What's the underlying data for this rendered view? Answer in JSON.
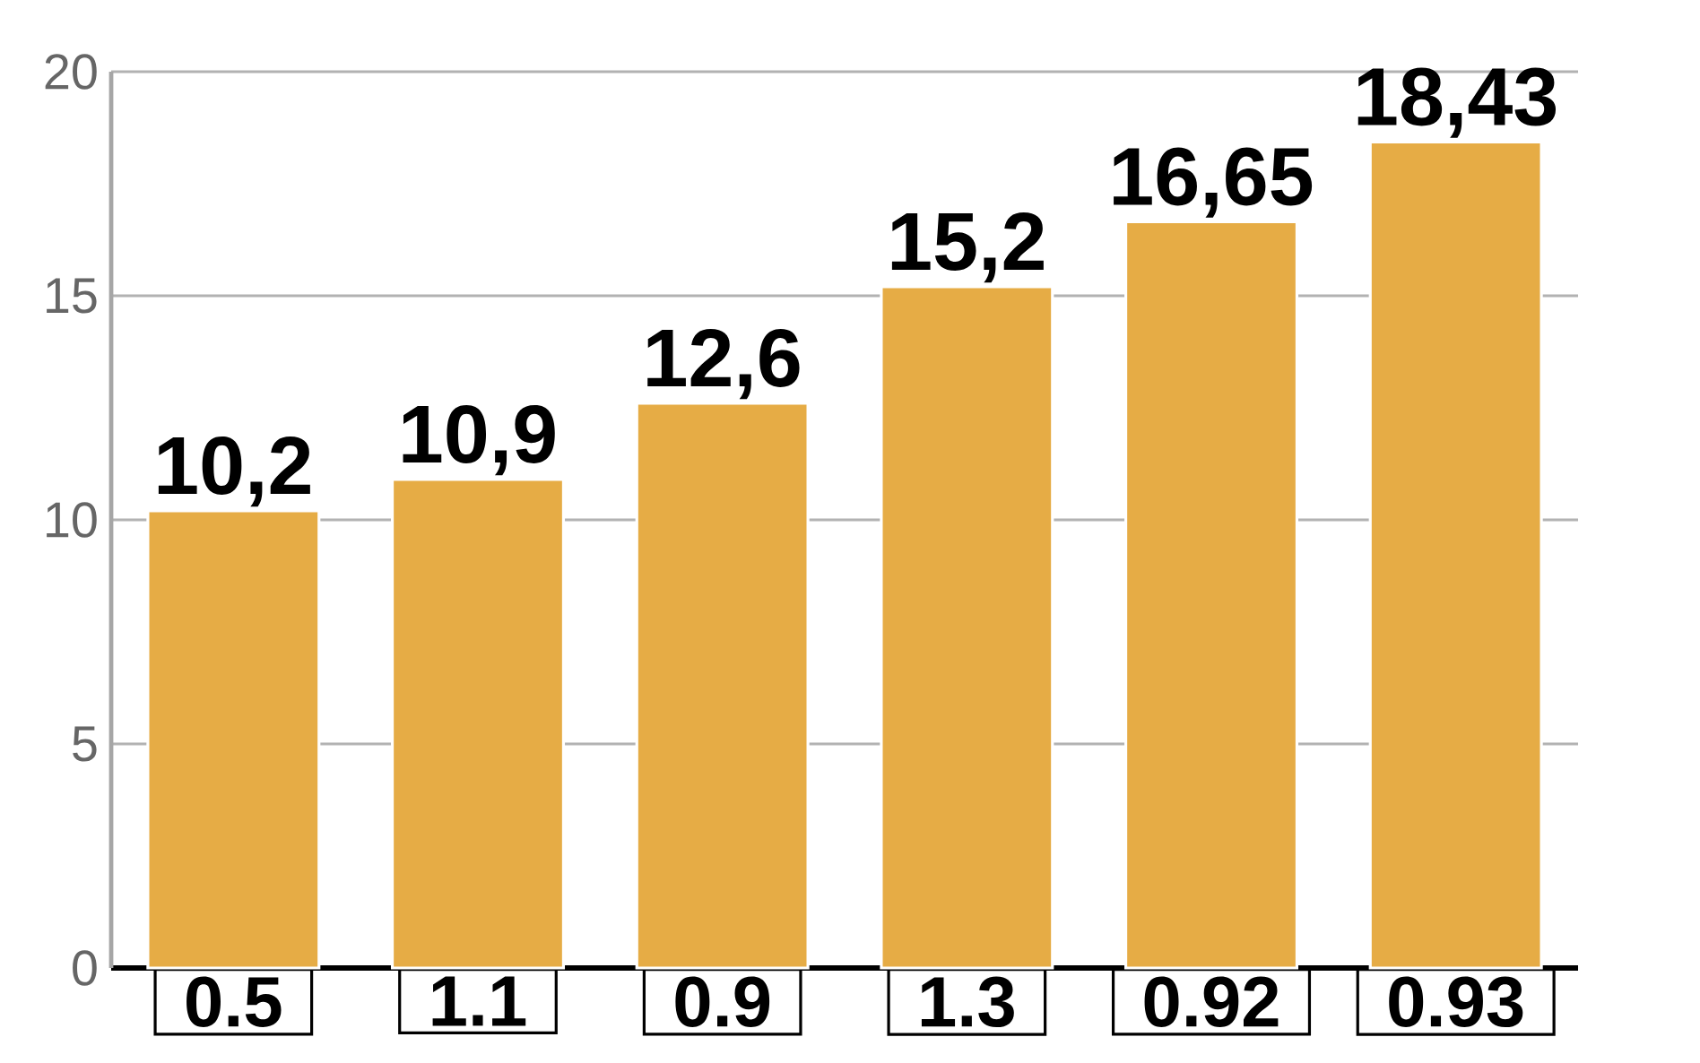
{
  "chart_data": {
    "type": "bar",
    "categories": [
      "0.5",
      "1.1",
      "0.9",
      "1.3",
      "0.92",
      "0.93"
    ],
    "values": [
      10.2,
      10.9,
      12.6,
      15.2,
      16.65,
      18.43
    ],
    "value_labels": [
      "10,2",
      "10,9",
      "12,6",
      "15,2",
      "16,65",
      "18,43"
    ],
    "color": "#e6ac45",
    "ylim": [
      0,
      20
    ],
    "yticks": [
      0,
      5,
      10,
      15,
      20
    ],
    "grid": "y"
  }
}
